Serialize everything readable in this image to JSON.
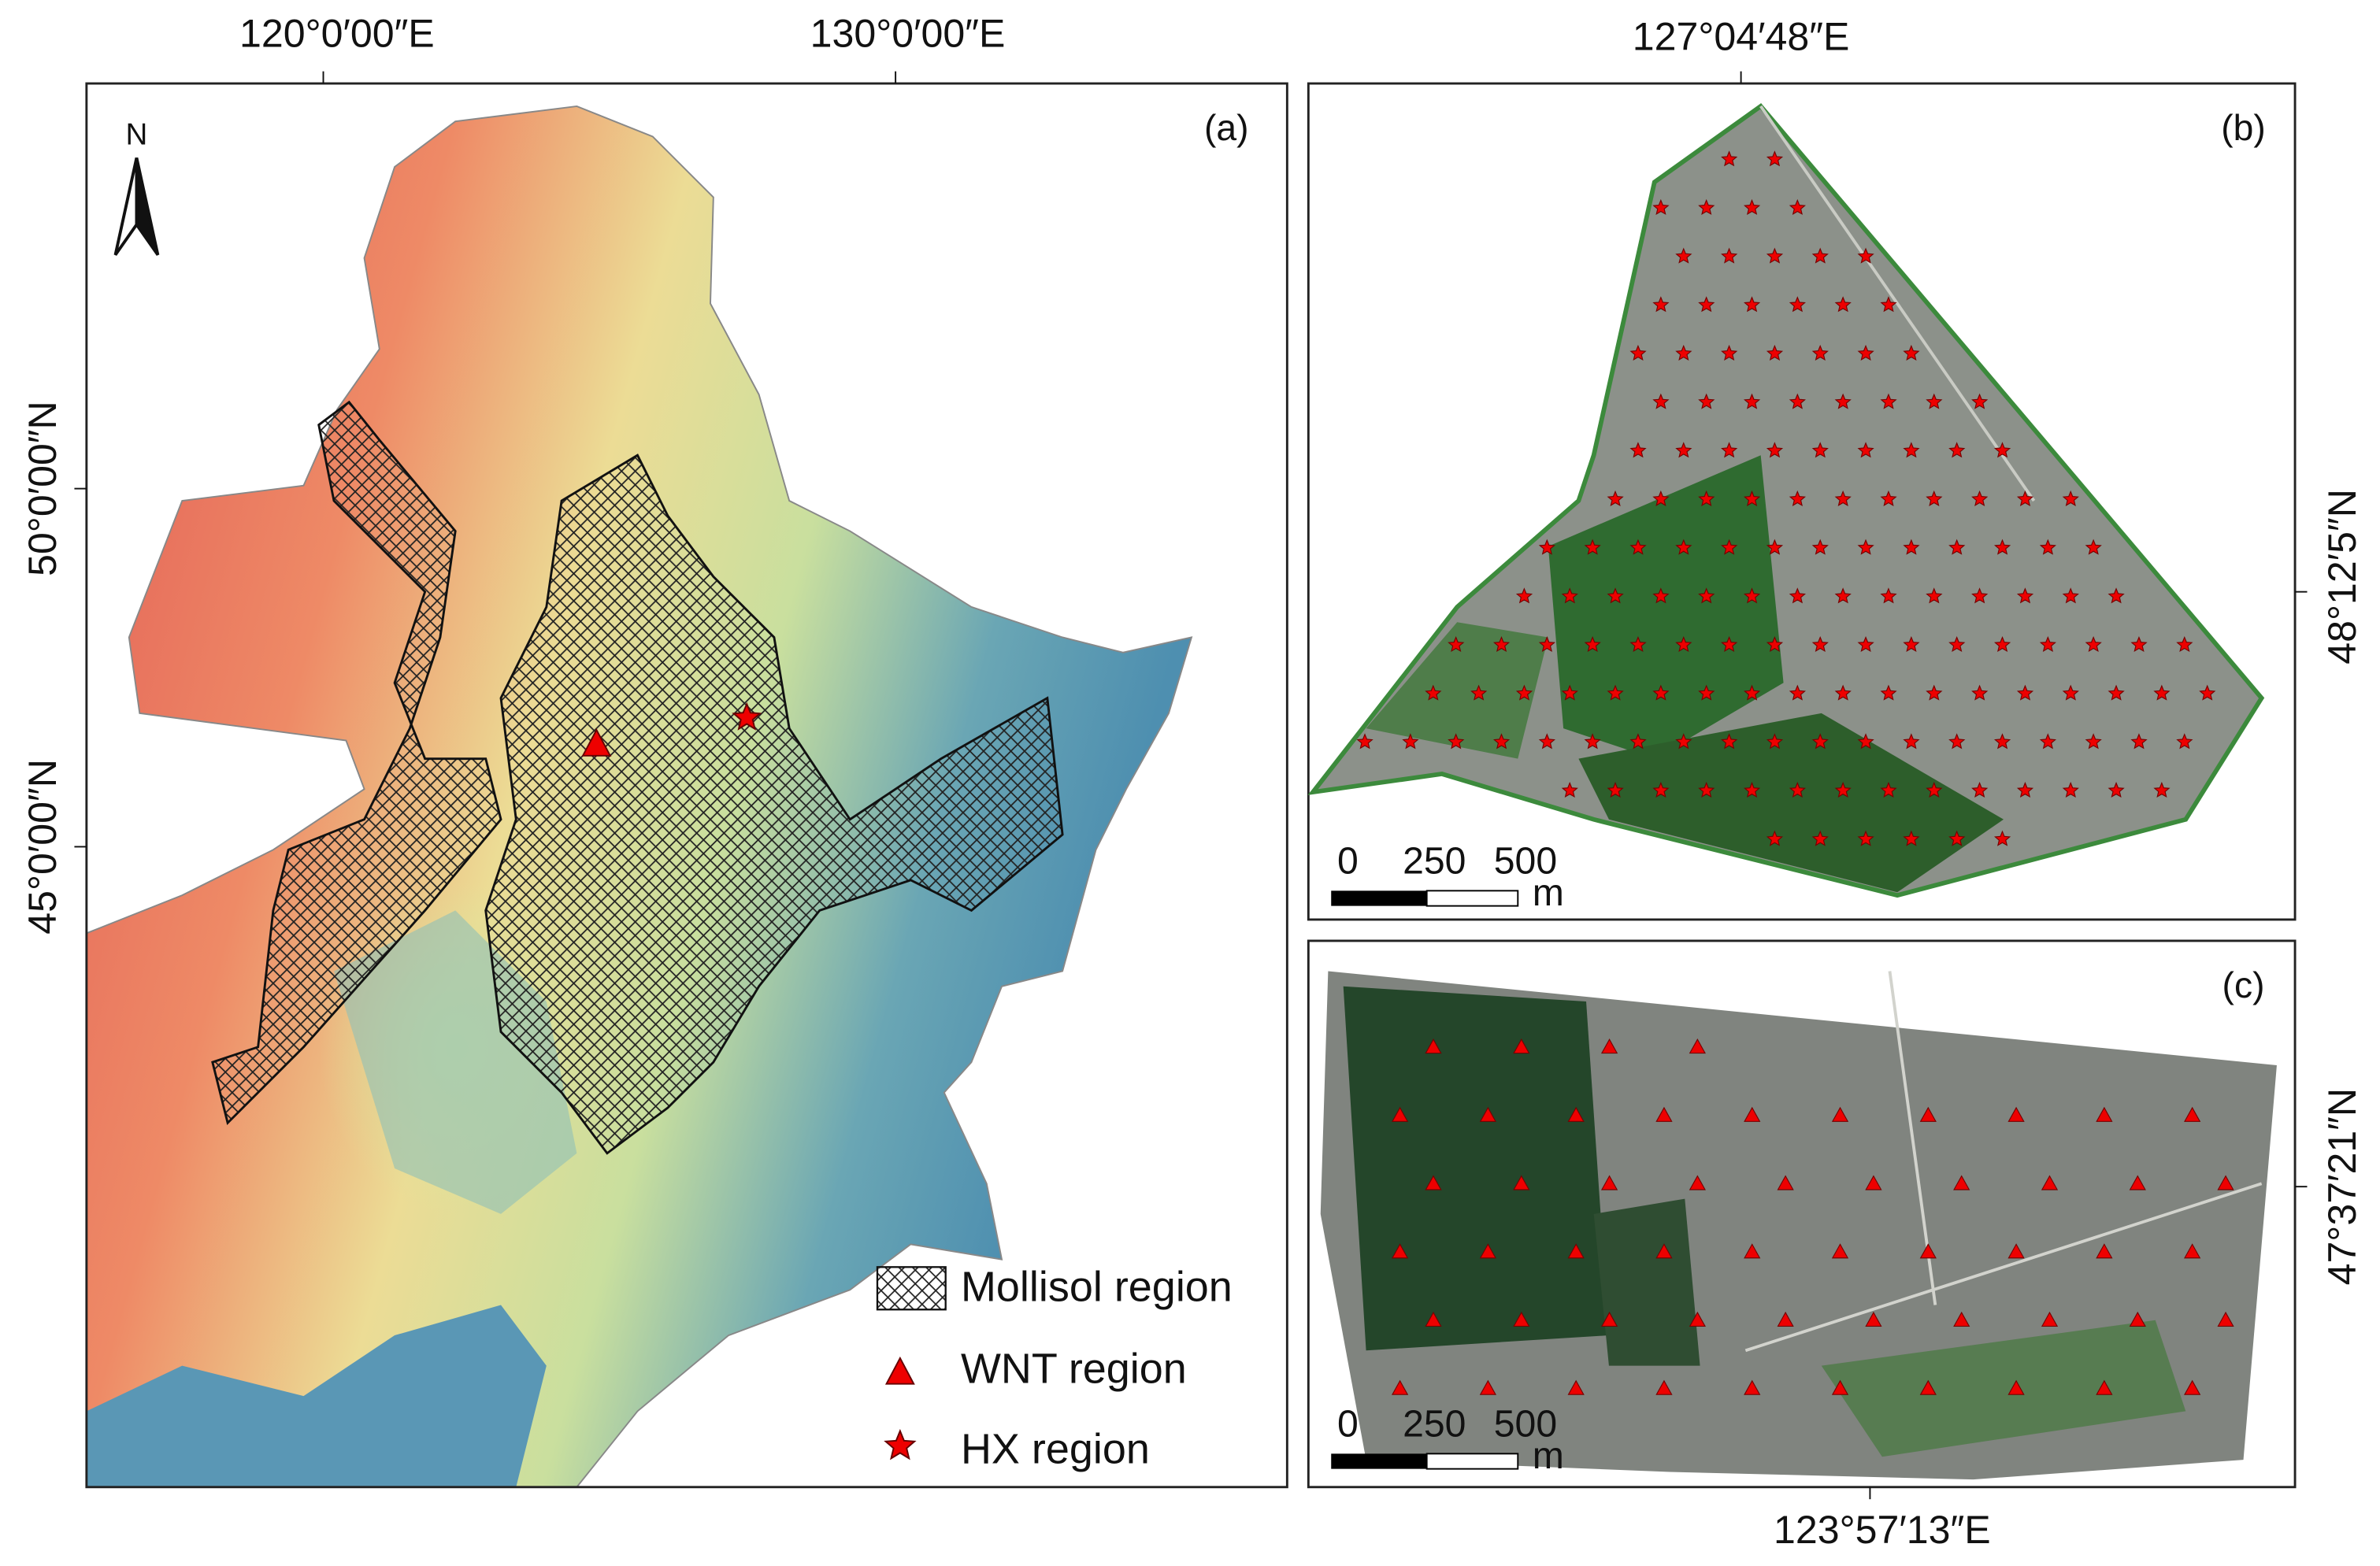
{
  "panel_a": {
    "label": "(a)",
    "north": "N",
    "top_ticks": [
      "120°0′00″E",
      "130°0′00″E"
    ],
    "left_ticks": [
      "50°0′00″N",
      "45°0′00″N"
    ],
    "legend": [
      "Mollisol region",
      "WNT region",
      "HX region"
    ]
  },
  "panel_b": {
    "label": "(b)",
    "top_tick": "127°04′48″E",
    "right_tick": "48°12′5″N",
    "scale": [
      "0",
      "250",
      "500",
      "m"
    ]
  },
  "panel_c": {
    "label": "(c)",
    "bottom_tick": "123°57′13″E",
    "right_tick": "47°37′21″N",
    "scale": [
      "0",
      "250",
      "500",
      "m"
    ]
  }
}
